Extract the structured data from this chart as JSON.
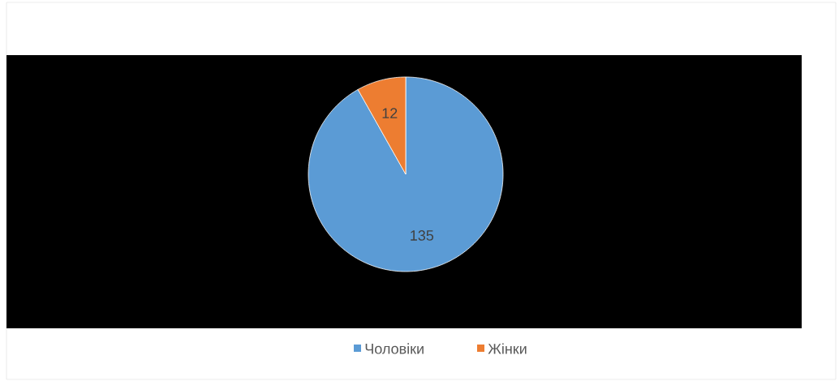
{
  "chart_data": {
    "type": "pie",
    "categories": [
      "Чоловіки",
      "Жінки"
    ],
    "values": [
      135,
      12
    ],
    "colors": [
      "#5b9bd5",
      "#ed7d31"
    ],
    "data_labels": true,
    "legend": "bottom"
  }
}
